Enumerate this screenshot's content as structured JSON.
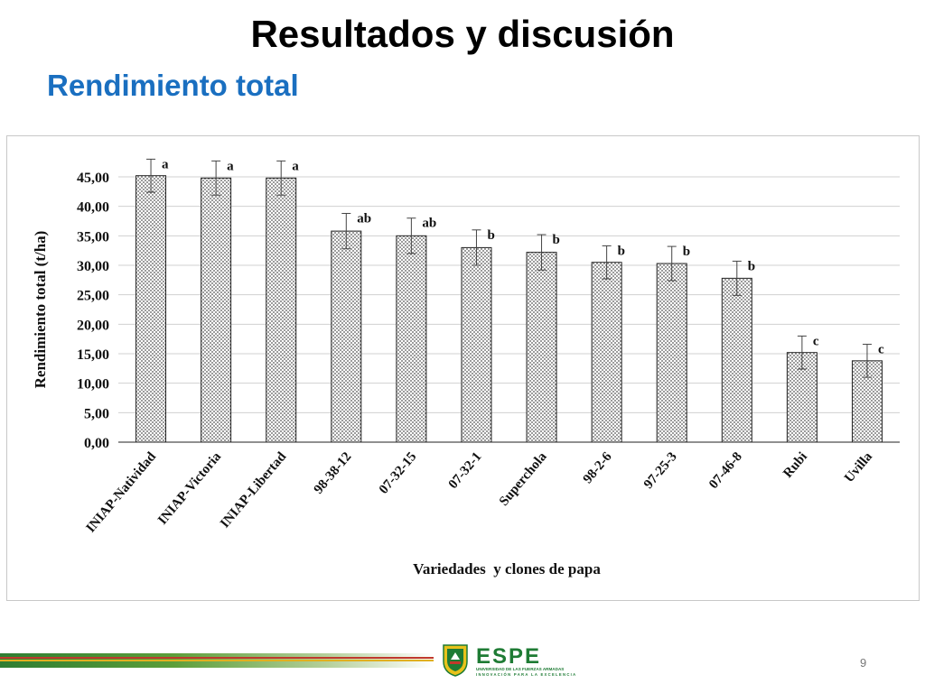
{
  "slide": {
    "title": "Resultados y discusión",
    "subtitle": "Rendimiento total",
    "page_number": "9"
  },
  "logo": {
    "brand": "ESPE",
    "line1": "UNIVERSIDAD DE LAS FUERZAS ARMADAS",
    "line2": "INNOVACIÓN PARA LA EXCELENCIA"
  },
  "colors": {
    "title": "#000000",
    "subtitle": "#1a6fc0",
    "bar_fill": "#ffffff",
    "bar_dots": "#555555",
    "bar_stroke": "#222222",
    "grid": "#d0d0d0",
    "logo_green": "#1e7b34"
  },
  "chart_data": {
    "type": "bar",
    "xlabel": "Variedades  y clones de papa",
    "ylabel": "Rendimiento total (t/ha)",
    "ylim": [
      0,
      45
    ],
    "yticks": [
      "0,00",
      "5,00",
      "10,00",
      "15,00",
      "20,00",
      "25,00",
      "30,00",
      "35,00",
      "40,00",
      "45,00"
    ],
    "grid": "horizontal",
    "categories": [
      "INIAP-Natividad",
      "INIAP-Victoria",
      "INIAP-Libertad",
      "98-38-12",
      "07-32-15",
      "07-32-1",
      "Superchola",
      "98-2-6",
      "97-25-3",
      "07-46-8",
      "Rubi",
      "Uvilla"
    ],
    "values": [
      45.2,
      44.8,
      44.8,
      35.8,
      35.0,
      33.0,
      32.2,
      30.5,
      30.3,
      27.8,
      15.2,
      13.8
    ],
    "errors": [
      2.8,
      2.9,
      2.9,
      3.0,
      3.0,
      3.0,
      3.0,
      2.8,
      2.9,
      2.9,
      2.8,
      2.8
    ],
    "significance": [
      "a",
      "a",
      "a",
      "ab",
      "ab",
      "b",
      "b",
      "b",
      "b",
      "b",
      "c",
      "c"
    ]
  }
}
